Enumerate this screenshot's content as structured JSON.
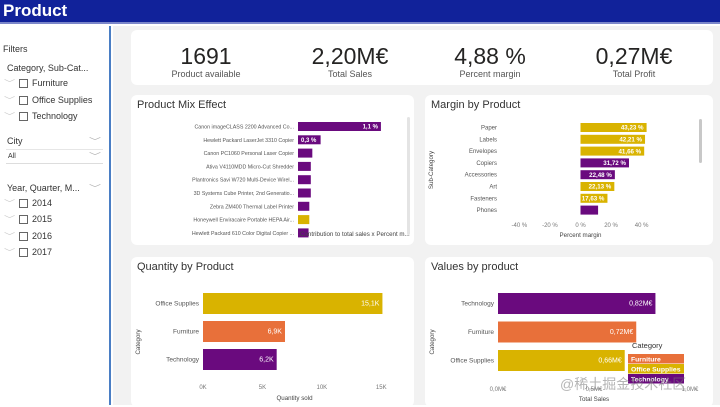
{
  "header": {
    "title": "Product"
  },
  "sidebar": {
    "filters_label": "Filters",
    "category_slicer": {
      "title": "Category, Sub-Cat...",
      "items": [
        {
          "label": "Furniture",
          "checked": false
        },
        {
          "label": "Office Supplies",
          "checked": false
        },
        {
          "label": "Technology",
          "checked": false
        }
      ]
    },
    "city_slicer": {
      "title": "City",
      "selected": "All"
    },
    "date_slicer": {
      "title": "Year, Quarter, M...",
      "items": [
        {
          "label": "2014",
          "checked": false
        },
        {
          "label": "2015",
          "checked": false
        },
        {
          "label": "2016",
          "checked": false
        },
        {
          "label": "2017",
          "checked": false
        }
      ]
    }
  },
  "kpis": [
    {
      "value": "1691",
      "label": "Product available"
    },
    {
      "value": "2,20M€",
      "label": "Total Sales"
    },
    {
      "value": "4,88 %",
      "label": "Percent margin"
    },
    {
      "value": "0,27M€",
      "label": "Total Profit"
    }
  ],
  "colors": {
    "purple": "#6a0a7e",
    "gold": "#d9b300",
    "orange": "#e8703a",
    "header": "#11229a"
  },
  "chart_data": [
    {
      "id": "product_mix",
      "type": "bar",
      "orientation": "horizontal",
      "title": "Product Mix Effect",
      "xlabel": "Contribution to total sales x Percent m...",
      "ylabel": "",
      "categories": [
        "Canon imageCLASS 2200 Advanced Co...",
        "Hewlett Packard LaserJet 3310 Copier",
        "Canon PC1060 Personal Laser Copier",
        "Ativa V4110MDD Micro-Cut Shredder",
        "Plantronics Savi W720 Multi-Device Wirel...",
        "3D Systems Cube Printer, 2nd Generatio...",
        "Zebra ZM400 Thermal Label Printer",
        "Honeywell Enviracaire Portable HEPA Air...",
        "Hewlett Packard 610 Color Digital Copier ..."
      ],
      "values": [
        1.1,
        0.3,
        0.19,
        0.17,
        0.17,
        0.17,
        0.15,
        0.15,
        0.14
      ],
      "data_labels": [
        "1,1 %",
        "0,3 %",
        "",
        "",
        "",
        "",
        "",
        "",
        ""
      ],
      "bar_colors": [
        "purple",
        "purple",
        "purple",
        "purple",
        "purple",
        "purple",
        "purple",
        "gold",
        "purple"
      ],
      "xlim": [
        0,
        1.3
      ]
    },
    {
      "id": "margin_by_product",
      "type": "bar",
      "orientation": "horizontal",
      "title": "Margin by Product",
      "xlabel": "Percent margin",
      "ylabel": "Sub-Category",
      "categories": [
        "Paper",
        "Labels",
        "Envelopes",
        "Copiers",
        "Accessories",
        "Art",
        "Fasteners",
        "Phones"
      ],
      "values": [
        43.23,
        42.21,
        41.66,
        31.72,
        22.48,
        22.13,
        17.63,
        11.5
      ],
      "data_labels": [
        "43,23 %",
        "42,21 %",
        "41,66 %",
        "31,72 %",
        "22,48 %",
        "22,13 %",
        "17,63 %",
        ""
      ],
      "bar_colors": [
        "gold",
        "gold",
        "gold",
        "purple",
        "purple",
        "gold",
        "gold",
        "purple"
      ],
      "xticks": [
        "-40 %",
        "-20 %",
        "0 %",
        "20 %",
        "40 %"
      ],
      "xtick_values": [
        -40,
        -20,
        0,
        20,
        40
      ],
      "xlim": [
        -52,
        52
      ]
    },
    {
      "id": "quantity_by_product",
      "type": "bar",
      "orientation": "horizontal",
      "title": "Quantity by Product",
      "xlabel": "Quantity sold",
      "ylabel": "Category",
      "categories": [
        "Office Supplies",
        "Furniture",
        "Technology"
      ],
      "values": [
        15100,
        6900,
        6200
      ],
      "data_labels": [
        "15,1K",
        "6,9K",
        "6,2K"
      ],
      "bar_colors": [
        "gold",
        "orange",
        "purple"
      ],
      "xticks": [
        "0K",
        "5K",
        "10K",
        "15K"
      ],
      "xtick_values": [
        0,
        5000,
        10000,
        15000
      ],
      "xlim": [
        0,
        15400
      ]
    },
    {
      "id": "values_by_product",
      "type": "bar",
      "orientation": "horizontal",
      "title": "Values by product",
      "xlabel": "Total Sales",
      "ylabel": "Category",
      "categories": [
        "Technology",
        "Furniture",
        "Office Supplies"
      ],
      "values": [
        0.82,
        0.72,
        0.66
      ],
      "data_labels": [
        "0,82M€",
        "0,72M€",
        "0,66M€"
      ],
      "bar_colors": [
        "purple",
        "orange",
        "gold"
      ],
      "xticks": [
        "0,0M€",
        "0,5M€",
        "1,0M€"
      ],
      "xtick_values": [
        0,
        0.5,
        1.0
      ],
      "xlim": [
        0,
        1.0
      ],
      "legend": {
        "title": "Category",
        "position": "right",
        "entries": [
          {
            "label": "Furniture",
            "color": "orange"
          },
          {
            "label": "Office Supplies",
            "color": "gold"
          },
          {
            "label": "Technology",
            "color": "purple"
          }
        ]
      }
    }
  ],
  "watermark": "@稀土掘金技术社区"
}
